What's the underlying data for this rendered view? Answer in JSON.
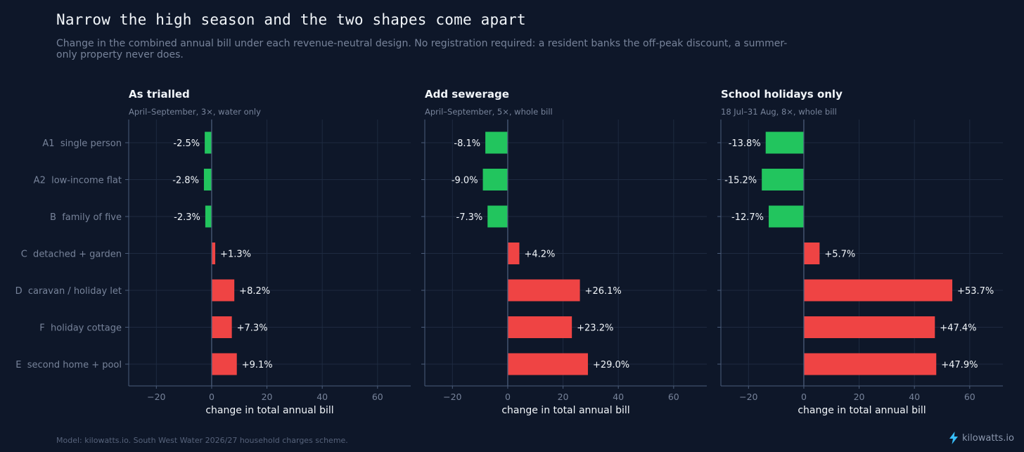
{
  "title": "Narrow the high season and the two shapes come apart",
  "subtitle": "Change in the combined annual bill under each revenue-neutral design. No registration required: a resident banks the off-peak discount, a summer-only property never does.",
  "footer": {
    "source": "Model: kilowatts.io. South West Water 2026/27 household charges scheme.",
    "brand": "kilowatts.io"
  },
  "colors": {
    "background": "#0e1729",
    "decrease": "#22c55e",
    "increase": "#ef4444",
    "grid": "#1e2a40",
    "zero_line": "#4b5c7a",
    "axis_text": "#77839a",
    "label_text": "#f1f5f9",
    "brand_icon": "#38bdf8"
  },
  "chart_data": [
    {
      "type": "bar",
      "orientation": "horizontal",
      "title": "As trialled",
      "subtitle": "April–September, 3×, water only",
      "xlabel": "change in total annual bill",
      "xlim": [
        -30,
        72
      ],
      "xticks": [
        -20,
        0,
        20,
        40,
        60
      ],
      "xtick_labels": [
        "−20",
        "0",
        "20",
        "40",
        "60"
      ],
      "grid": true,
      "categories": [
        "A1  single person",
        "A2  low-income flat",
        "B  family of five",
        "C  detached + garden",
        "D  caravan / holiday let",
        "F  holiday cottage",
        "E  second home + pool"
      ],
      "values": [
        -2.5,
        -2.8,
        -2.3,
        1.3,
        8.2,
        7.3,
        9.1
      ],
      "value_labels": [
        "-2.5%",
        "-2.8%",
        "-2.3%",
        "+1.3%",
        "+8.2%",
        "+7.3%",
        "+9.1%"
      ]
    },
    {
      "type": "bar",
      "orientation": "horizontal",
      "title": "Add sewerage",
      "subtitle": "April–September, 5×, whole bill",
      "xlabel": "change in total annual bill",
      "xlim": [
        -30,
        72
      ],
      "xticks": [
        -20,
        0,
        20,
        40,
        60
      ],
      "xtick_labels": [
        "−20",
        "0",
        "20",
        "40",
        "60"
      ],
      "grid": true,
      "categories": [
        "A1  single person",
        "A2  low-income flat",
        "B  family of five",
        "C  detached + garden",
        "D  caravan / holiday let",
        "F  holiday cottage",
        "E  second home + pool"
      ],
      "values": [
        -8.1,
        -9.0,
        -7.3,
        4.2,
        26.1,
        23.2,
        29.0
      ],
      "value_labels": [
        "-8.1%",
        "-9.0%",
        "-7.3%",
        "+4.2%",
        "+26.1%",
        "+23.2%",
        "+29.0%"
      ]
    },
    {
      "type": "bar",
      "orientation": "horizontal",
      "title": "School holidays only",
      "subtitle": "18 Jul–31 Aug, 8×, whole bill",
      "xlabel": "change in total annual bill",
      "xlim": [
        -30,
        72
      ],
      "xticks": [
        -20,
        0,
        20,
        40,
        60
      ],
      "xtick_labels": [
        "−20",
        "0",
        "20",
        "40",
        "60"
      ],
      "grid": true,
      "categories": [
        "A1  single person",
        "A2  low-income flat",
        "B  family of five",
        "C  detached + garden",
        "D  caravan / holiday let",
        "F  holiday cottage",
        "E  second home + pool"
      ],
      "values": [
        -13.8,
        -15.2,
        -12.7,
        5.7,
        53.7,
        47.4,
        47.9
      ],
      "value_labels": [
        "-13.8%",
        "-15.2%",
        "-12.7%",
        "+5.7%",
        "+53.7%",
        "+47.4%",
        "+47.9%"
      ]
    }
  ]
}
